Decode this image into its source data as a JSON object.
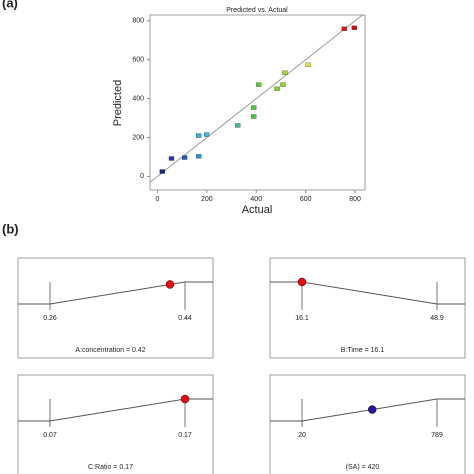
{
  "chart_data": [
    {
      "type": "scatter",
      "panel": "(a)",
      "title": "Predicted vs. Actual",
      "xlabel": "Actual",
      "ylabel": "Predicted",
      "x": [
        20,
        57,
        110,
        167,
        167,
        199,
        325,
        390,
        390,
        410,
        484,
        508,
        516,
        610,
        756,
        797
      ],
      "y": [
        25,
        92,
        97,
        103,
        210,
        215,
        262,
        308,
        354,
        472,
        451,
        472,
        533,
        574,
        759,
        764
      ],
      "colors": [
        "#1a237e",
        "#1e3aa8",
        "#2456c0",
        "#2e8fd0",
        "#36a6e0",
        "#3cb8e8",
        "#3ec08a",
        "#4cc040",
        "#52c43c",
        "#5ac832",
        "#7ed030",
        "#8ed430",
        "#a0d838",
        "#e8e040",
        "#d81818",
        "#c81010"
      ],
      "xlim": [
        -30,
        840
      ],
      "ylim": [
        -70,
        830
      ],
      "xticks": [
        0,
        200,
        400,
        600,
        800
      ],
      "yticks": [
        0,
        200,
        400,
        600,
        800
      ]
    },
    {
      "type": "desirability",
      "panel": "(b)",
      "factors": [
        {
          "caption": "A:concentration = 0.42",
          "low": 0.26,
          "high": 0.44,
          "value": 0.42,
          "rising": true,
          "color": "#e01010"
        },
        {
          "caption": "B:Time = 16.1",
          "low": 16.1,
          "high": 48.9,
          "value": 16.1,
          "rising": false,
          "color": "#e01010"
        },
        {
          "caption": "C:Ratio = 0.17",
          "low": 0.07,
          "high": 0.17,
          "value": 0.17,
          "rising": true,
          "color": "#e01010"
        },
        {
          "caption": "(SA) = 420",
          "low": 20,
          "high": 789,
          "value": 420,
          "rising": true,
          "color": "#1a1aa0"
        }
      ]
    }
  ]
}
